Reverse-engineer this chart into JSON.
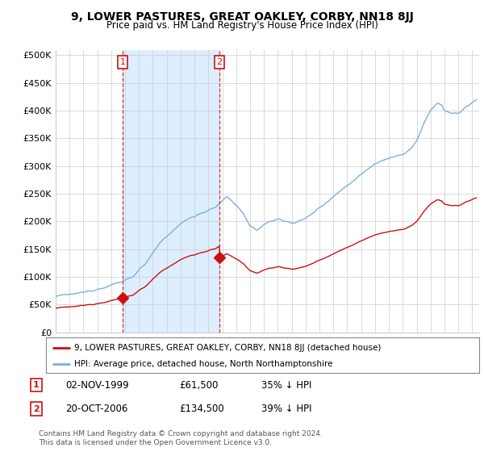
{
  "title": "9, LOWER PASTURES, GREAT OAKLEY, CORBY, NN18 8JJ",
  "subtitle": "Price paid vs. HM Land Registry's House Price Index (HPI)",
  "ylabel_ticks": [
    "£0",
    "£50K",
    "£100K",
    "£150K",
    "£200K",
    "£250K",
    "£300K",
    "£350K",
    "£400K",
    "£450K",
    "£500K"
  ],
  "ytick_values": [
    0,
    50000,
    100000,
    150000,
    200000,
    250000,
    300000,
    350000,
    400000,
    450000,
    500000
  ],
  "ylim": [
    0,
    510000
  ],
  "xlim_start": 1995.0,
  "xlim_end": 2025.5,
  "hpi_color": "#7aafe0",
  "price_color": "#cc1111",
  "shade_color": "#ddeeff",
  "marker1_year": 1999.83,
  "marker1_price": 61500,
  "marker1_label": "1",
  "marker1_date": "02-NOV-1999",
  "marker1_pct": "35% ↓ HPI",
  "marker2_year": 2006.79,
  "marker2_price": 134500,
  "marker2_label": "2",
  "marker2_date": "20-OCT-2006",
  "marker2_pct": "39% ↓ HPI",
  "vline1_x": 1999.83,
  "vline2_x": 2006.79,
  "legend_line1": "9, LOWER PASTURES, GREAT OAKLEY, CORBY, NN18 8JJ (detached house)",
  "legend_line2": "HPI: Average price, detached house, North Northamptonshire",
  "footer": "Contains HM Land Registry data © Crown copyright and database right 2024.\nThis data is licensed under the Open Government Licence v3.0.",
  "bg_color": "#ffffff",
  "plot_bg_color": "#ffffff",
  "grid_color": "#cccccc"
}
